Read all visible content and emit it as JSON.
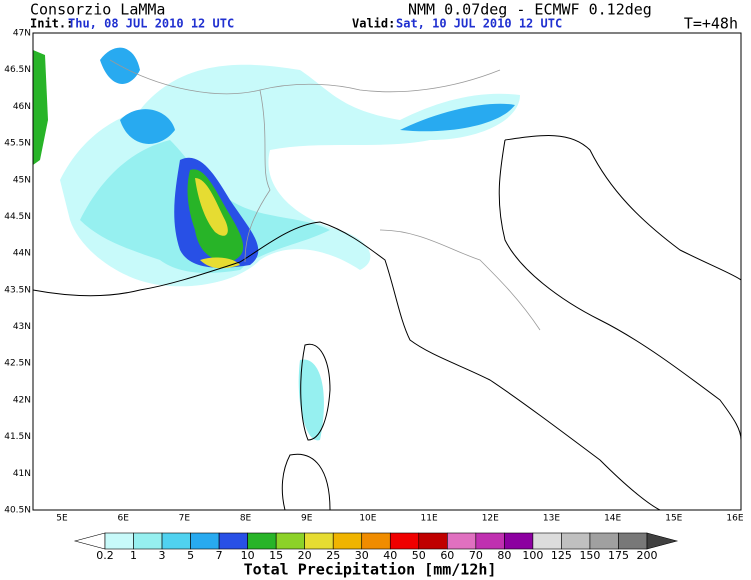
{
  "header": {
    "source": "Consorzio LaMMa",
    "init_label": "Init.:",
    "init_time": "Thu, 08 JUL 2010  12 UTC",
    "valid_label": "Valid:",
    "valid_time": "Sat, 10 JUL 2010  12 UTC",
    "model": "NMM 0.07deg - ECMWF 0.12deg",
    "lead_time": "T=+48h"
  },
  "map": {
    "lat_labels": [
      "47N",
      "46.5N",
      "46N",
      "45.5N",
      "45N",
      "44.5N",
      "44N",
      "43.5N",
      "43N",
      "42.5N",
      "42N",
      "41.5N",
      "41N",
      "40.5N"
    ],
    "lon_labels": [
      "5E",
      "6E",
      "7E",
      "8E",
      "9E",
      "10E",
      "11E",
      "12E",
      "13E",
      "14E",
      "15E",
      "16E"
    ]
  },
  "colorbar": {
    "title": "Total Precipitation [mm/12h]",
    "labels": [
      "0.2",
      "1",
      "3",
      "5",
      "7",
      "10",
      "15",
      "20",
      "25",
      "30",
      "40",
      "50",
      "60",
      "70",
      "80",
      "100",
      "125",
      "150",
      "175",
      "200"
    ],
    "colors": [
      "#ffffff",
      "#c8fafa",
      "#96f0f0",
      "#50d2f0",
      "#28aaf0",
      "#2850e6",
      "#28b428",
      "#8cd228",
      "#e6dc32",
      "#f0b400",
      "#f08c00",
      "#f00000",
      "#c00000",
      "#e070c0",
      "#c030b0",
      "#8c00a0",
      "#dcdcdc",
      "#c0c0c0",
      "#a0a0a0",
      "#787878",
      "#404040"
    ]
  }
}
